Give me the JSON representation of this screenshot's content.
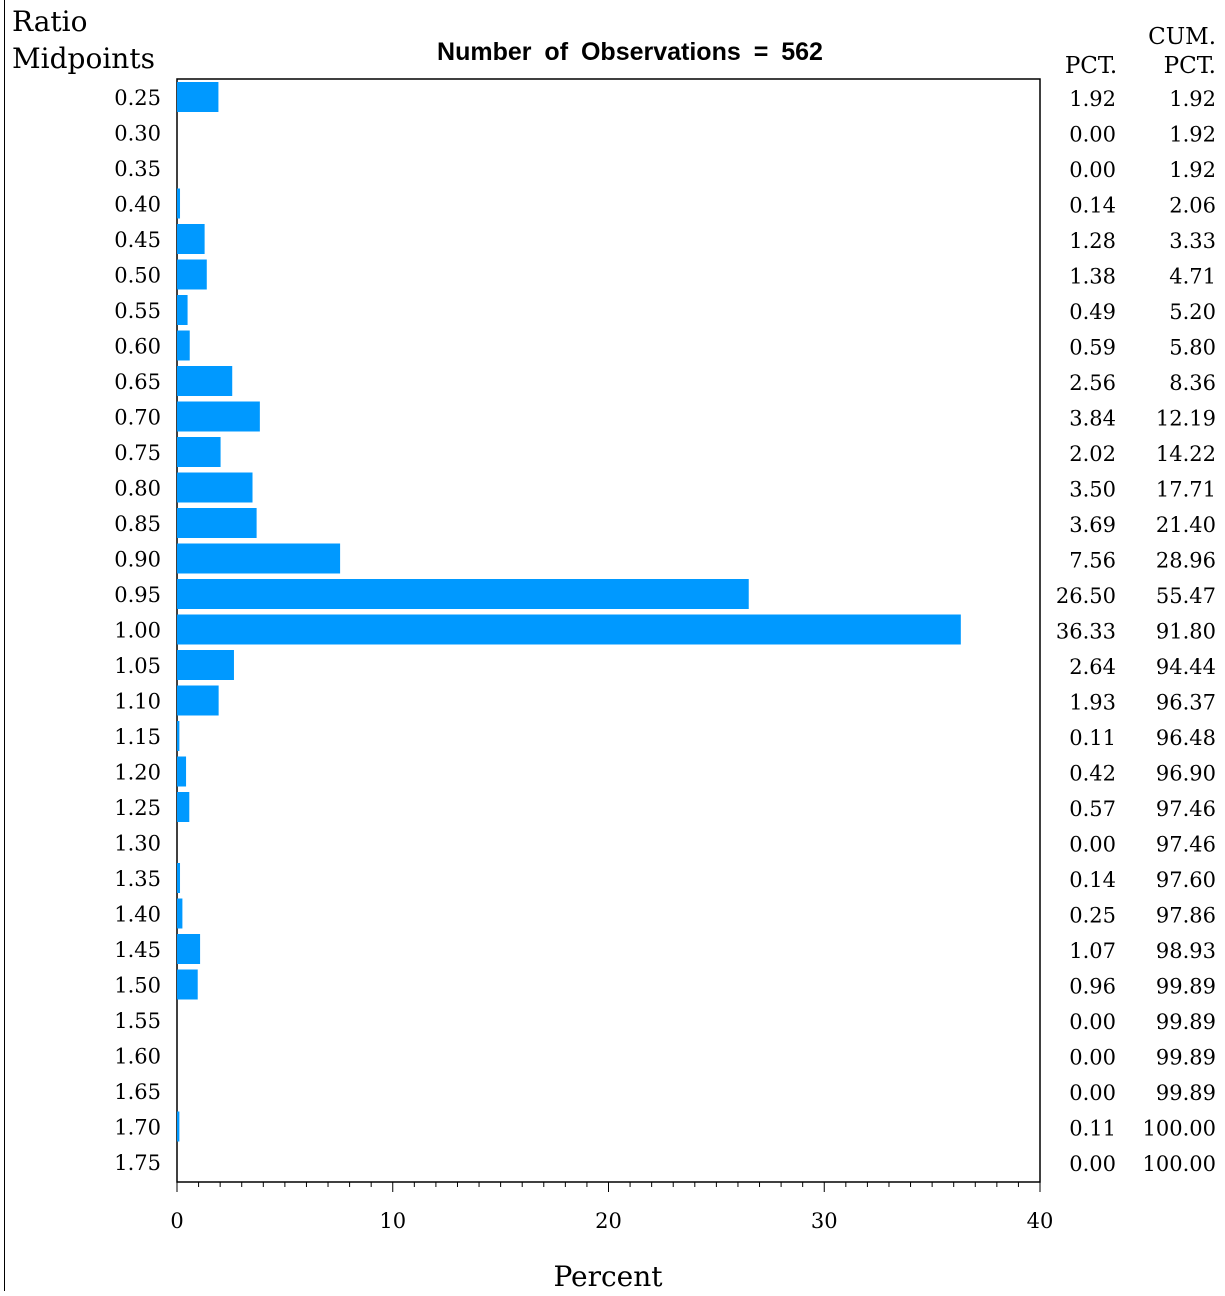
{
  "chart_data": {
    "type": "bar",
    "orientation": "horizontal",
    "title": "Number of Observations = 562",
    "ylabel_line1": "Ratio",
    "ylabel_line2": "Midpoints",
    "xlabel": "Percent",
    "xlim": [
      0,
      40
    ],
    "xticks": [
      "0",
      "10",
      "20",
      "30",
      "40"
    ],
    "pct_header": "PCT.",
    "cum_header_line1": "CUM.",
    "cum_header_line2": "PCT.",
    "bar_color": "#0099FF",
    "categories": [
      "0.25",
      "0.30",
      "0.35",
      "0.40",
      "0.45",
      "0.50",
      "0.55",
      "0.60",
      "0.65",
      "0.70",
      "0.75",
      "0.80",
      "0.85",
      "0.90",
      "0.95",
      "1.00",
      "1.05",
      "1.10",
      "1.15",
      "1.20",
      "1.25",
      "1.30",
      "1.35",
      "1.40",
      "1.45",
      "1.50",
      "1.55",
      "1.60",
      "1.65",
      "1.70",
      "1.75"
    ],
    "pct": [
      "1.92",
      "0.00",
      "0.00",
      "0.14",
      "1.28",
      "1.38",
      "0.49",
      "0.59",
      "2.56",
      "3.84",
      "2.02",
      "3.50",
      "3.69",
      "7.56",
      "26.50",
      "36.33",
      "2.64",
      "1.93",
      "0.11",
      "0.42",
      "0.57",
      "0.00",
      "0.14",
      "0.25",
      "1.07",
      "0.96",
      "0.00",
      "0.00",
      "0.00",
      "0.11",
      "0.00"
    ],
    "cum_pct": [
      "1.92",
      "1.92",
      "1.92",
      "2.06",
      "3.33",
      "4.71",
      "5.20",
      "5.80",
      "8.36",
      "12.19",
      "14.22",
      "17.71",
      "21.40",
      "28.96",
      "55.47",
      "91.80",
      "94.44",
      "96.37",
      "96.48",
      "96.90",
      "97.46",
      "97.46",
      "97.60",
      "97.86",
      "98.93",
      "99.89",
      "99.89",
      "99.89",
      "99.89",
      "100.00",
      "100.00"
    ]
  }
}
